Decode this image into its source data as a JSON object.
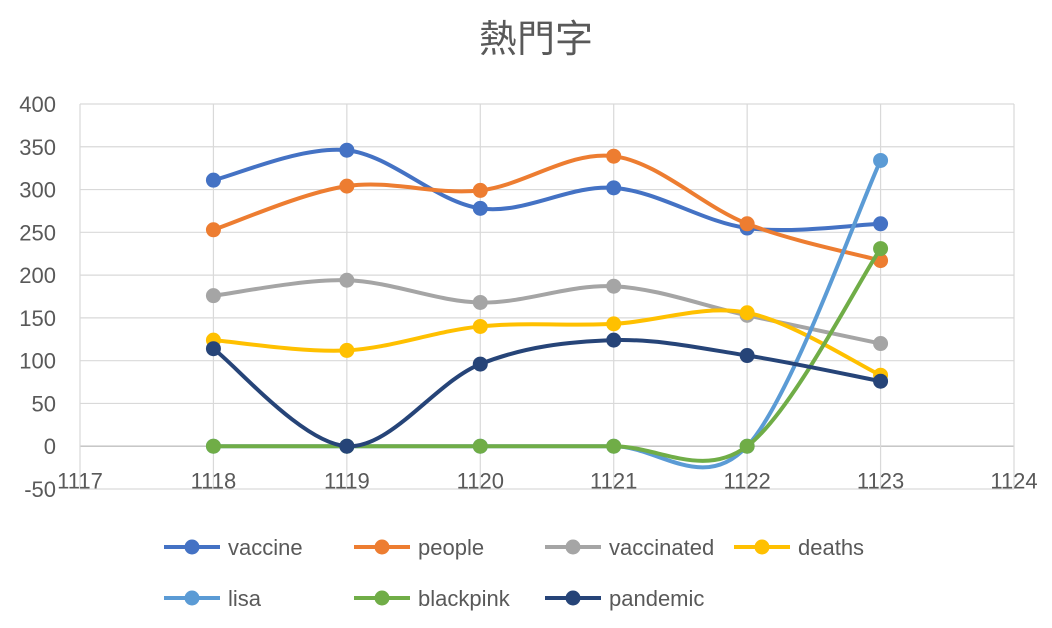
{
  "chart_data": {
    "type": "line",
    "smooth": true,
    "title": "熱門字",
    "xlabel": "",
    "ylabel": "",
    "xlim": [
      1117,
      1124
    ],
    "ylim": [
      -50,
      400
    ],
    "xticks": [
      1117,
      1118,
      1119,
      1120,
      1121,
      1122,
      1123,
      1124
    ],
    "yticks": [
      -50,
      0,
      50,
      100,
      150,
      200,
      250,
      300,
      350,
      400
    ],
    "grid": true,
    "legend_position": "bottom",
    "x": [
      1118,
      1119,
      1120,
      1121,
      1122,
      1123
    ],
    "series": [
      {
        "name": "vaccine",
        "color": "#4472C4",
        "values": [
          311,
          346,
          278,
          302,
          255,
          260
        ]
      },
      {
        "name": "people",
        "color": "#ED7D31",
        "values": [
          253,
          304,
          299,
          339,
          260,
          217
        ]
      },
      {
        "name": "vaccinated",
        "color": "#A5A5A5",
        "values": [
          176,
          194,
          168,
          187,
          153,
          120
        ]
      },
      {
        "name": "deaths",
        "color": "#FFC000",
        "values": [
          124,
          112,
          140,
          143,
          156,
          83
        ]
      },
      {
        "name": "lisa",
        "color": "#5B9BD5",
        "values": [
          0,
          0,
          0,
          0,
          0,
          334
        ]
      },
      {
        "name": "blackpink",
        "color": "#70AD47",
        "values": [
          0,
          0,
          0,
          0,
          0,
          231
        ]
      },
      {
        "name": "pandemic",
        "color": "#264478",
        "values": [
          114,
          0,
          96,
          124,
          106,
          76
        ]
      }
    ]
  }
}
